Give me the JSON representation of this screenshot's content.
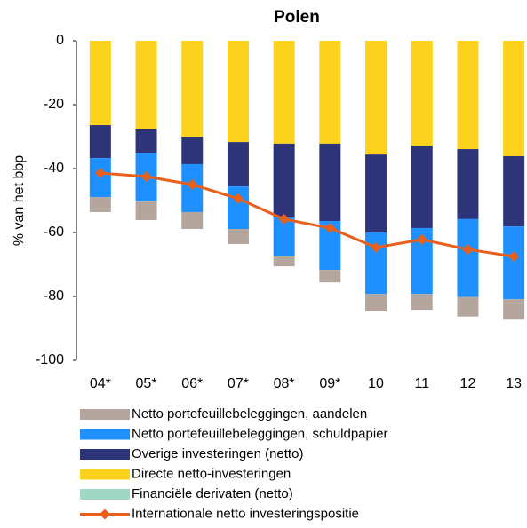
{
  "chart_data": {
    "type": "bar",
    "stacked": true,
    "title": "Polen",
    "y_label": "% van het bbp",
    "categories": [
      "04*",
      "05*",
      "06*",
      "07*",
      "08*",
      "09*",
      "10",
      "11",
      "12",
      "13"
    ],
    "ylim": [
      -100,
      0
    ],
    "yticks": [
      0,
      -20,
      -40,
      -60,
      -80,
      -100
    ],
    "grid": false,
    "series": [
      {
        "name": "Netto portefeuillebeleggingen, aandelen",
        "color": "#b5a69d",
        "values": [
          -4.7,
          -5.8,
          -5.3,
          -4.7,
          -3.1,
          -3.9,
          -5.5,
          -5.0,
          -6.1,
          -6.4
        ]
      },
      {
        "name": "Netto portefeuillebeleggingen, schuldpapier",
        "color": "#1e90ff",
        "values": [
          -12.2,
          -15.3,
          -15.0,
          -13.3,
          -12.2,
          -15.3,
          -19.2,
          -20.6,
          -24.4,
          -22.8
        ]
      },
      {
        "name": "Overige investeringen (netto)",
        "color": "#2e3478",
        "values": [
          -10.3,
          -7.5,
          -8.6,
          -13.9,
          -23.1,
          -24.2,
          -24.4,
          -25.8,
          -21.9,
          -22.0
        ]
      },
      {
        "name": "Directe netto-investeringen",
        "color": "#fcd21c",
        "values": [
          -26.4,
          -27.5,
          -30.0,
          -31.7,
          -32.2,
          -32.2,
          -35.6,
          -32.8,
          -33.9,
          -36.1
        ]
      },
      {
        "name": "Financiële derivaten (netto)",
        "color": "#9fd9c6",
        "values": [
          0,
          0,
          0,
          0,
          0,
          0,
          0,
          0,
          0,
          0
        ]
      },
      {
        "name": "Internationale netto investeringspositie",
        "type": "line",
        "color": "#e8601c",
        "values": [
          -41.4,
          -42.5,
          -45.0,
          -49.4,
          -55.8,
          -58.6,
          -64.7,
          -62.2,
          -65.3,
          -67.5
        ]
      }
    ]
  }
}
